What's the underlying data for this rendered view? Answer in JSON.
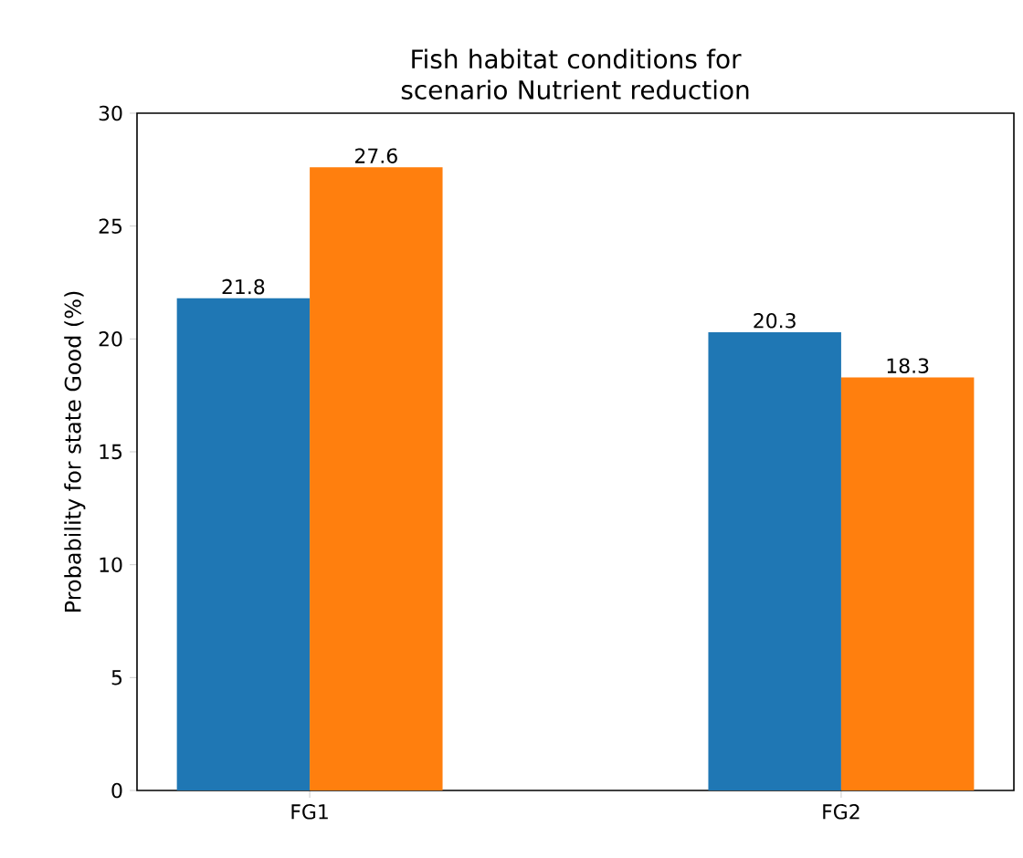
{
  "chart_data": {
    "type": "bar",
    "title": "Fish habitat conditions for scenario Nutrient reduction",
    "ylabel": "Probability for state Good (%)",
    "categories": [
      "FG1",
      "FG2"
    ],
    "series": [
      {
        "color": "#1f77b4",
        "values": [
          21.8,
          20.3
        ]
      },
      {
        "color": "#ff7f0e",
        "values": [
          27.6,
          18.3
        ]
      }
    ],
    "ylim": [
      0,
      30
    ],
    "yticks": [
      0,
      5,
      10,
      15,
      20,
      25,
      30
    ],
    "data_labels": true
  }
}
